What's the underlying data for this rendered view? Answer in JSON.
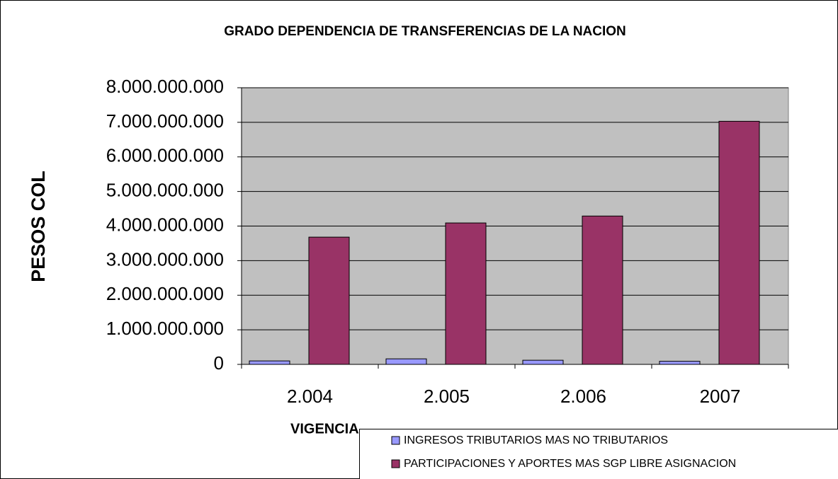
{
  "chart_data": {
    "type": "bar",
    "title": "GRADO DEPENDENCIA DE TRANSFERENCIAS DE LA NACION",
    "y_label": "PESOS COL",
    "x_label": "VIGENCIA",
    "categories": [
      "2.004",
      "2.005",
      "2.006",
      "2007"
    ],
    "series": [
      {
        "name": "INGRESOS TRIBUTARIOS MAS NO TRIBUTARIOS",
        "color": "#9999ff",
        "values": [
          100000000,
          160000000,
          120000000,
          90000000
        ]
      },
      {
        "name": "PARTICIPACIONES Y APORTES MAS SGP LIBRE ASIGNACION",
        "color": "#993366",
        "values": [
          3680000000,
          4090000000,
          4290000000,
          7030000000
        ]
      }
    ],
    "ylim": [
      0,
      8000000000
    ],
    "yticks": [
      0,
      {
        "value": 1000000000,
        "label": "1.000.000.000"
      },
      {
        "value": 2000000000,
        "label": "2.000.000.000"
      },
      {
        "value": 3000000000,
        "label": "3.000.000.000"
      },
      {
        "value": 4000000000,
        "label": "4.000.000.000"
      },
      {
        "value": 5000000000,
        "label": "5.000.000.000"
      },
      {
        "value": 6000000000,
        "label": "6.000.000.000"
      },
      {
        "value": 7000000000,
        "label": "7.000.000.000"
      },
      {
        "value": 8000000000,
        "label": "8.000.000.000"
      }
    ],
    "grid": true,
    "legend": "bottom-right",
    "plot_background": "#c0c0c0"
  }
}
